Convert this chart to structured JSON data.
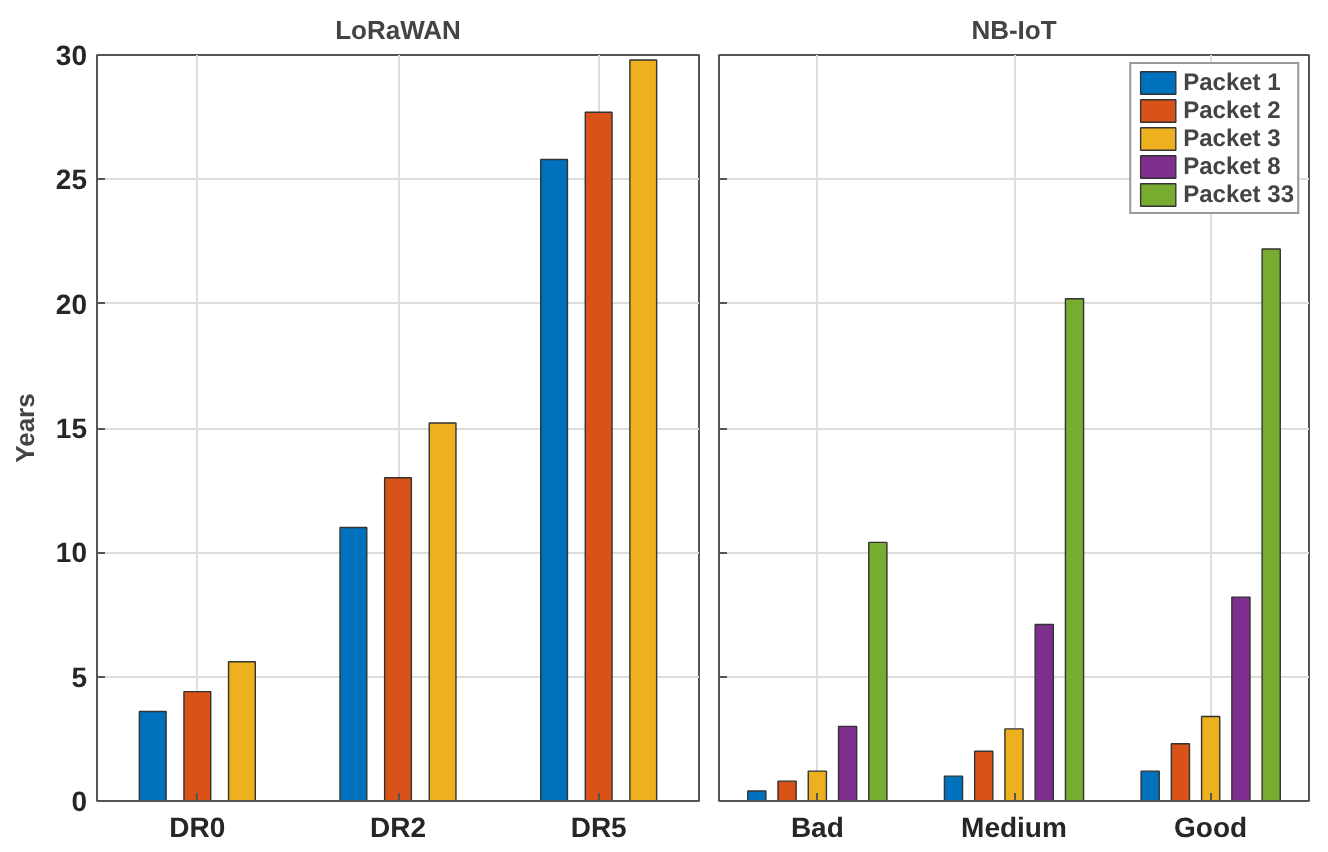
{
  "chart_data": [
    {
      "type": "bar",
      "title": "LoRaWAN",
      "ylabel": "Years",
      "categories": [
        "DR0",
        "DR2",
        "DR5"
      ],
      "ylim": [
        0,
        30
      ],
      "yticks": [
        0,
        5,
        10,
        15,
        20,
        25,
        30
      ],
      "grid": true,
      "series": [
        {
          "color": "#0072bd",
          "values": [
            3.6,
            11,
            25.8
          ]
        },
        {
          "color": "#d95319",
          "values": [
            4.4,
            13,
            27.7
          ]
        },
        {
          "color": "#edb120",
          "values": [
            5.6,
            15.2,
            29.8
          ]
        }
      ]
    },
    {
      "type": "bar",
      "title": "NB-IoT",
      "categories": [
        "Bad",
        "Medium",
        "Good"
      ],
      "ylim": [
        0,
        30
      ],
      "yticks": [
        0,
        5,
        10,
        15,
        20,
        25,
        30
      ],
      "tick_labels": "x",
      "grid": true,
      "legend": "top right",
      "series": [
        {
          "name": "Packet 1",
          "color": "#0072bd",
          "values": [
            0.4,
            1.0,
            1.2
          ]
        },
        {
          "name": "Packet 2",
          "color": "#d95319",
          "values": [
            0.8,
            2.0,
            2.3
          ]
        },
        {
          "name": "Packet 3",
          "color": "#edb120",
          "values": [
            1.2,
            2.9,
            3.4
          ]
        },
        {
          "name": "Packet 8",
          "color": "#7e2f8e",
          "values": [
            3.0,
            7.1,
            8.2
          ]
        },
        {
          "name": "Packet 33",
          "color": "#77ac30",
          "values": [
            10.4,
            20.2,
            22.2
          ]
        }
      ]
    }
  ]
}
